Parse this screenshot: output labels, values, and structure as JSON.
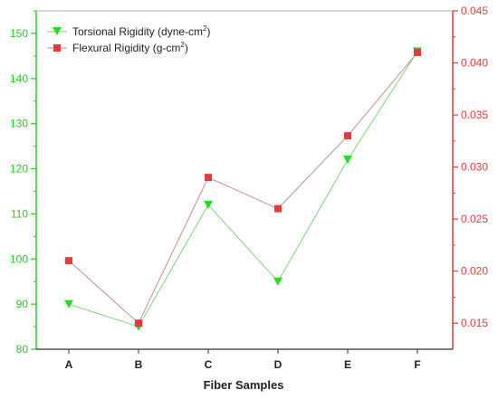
{
  "chart_data": {
    "type": "line",
    "xlabel": "Fiber Samples",
    "categories": [
      "A",
      "B",
      "C",
      "D",
      "E",
      "F"
    ],
    "y_left": {
      "range": [
        80,
        155
      ],
      "ticks": [
        80,
        90,
        100,
        110,
        120,
        130,
        140,
        150
      ],
      "tick_labels": [
        "80",
        "90",
        "100",
        "110",
        "120",
        "130",
        "140",
        "150"
      ]
    },
    "y_right": {
      "range": [
        0.0125,
        0.045
      ],
      "ticks": [
        0.015,
        0.02,
        0.025,
        0.03,
        0.035,
        0.04,
        0.045
      ],
      "tick_labels": [
        "0.015",
        "0.020",
        "0.025",
        "0.030",
        "0.035",
        "0.040",
        "0.045"
      ]
    },
    "series": [
      {
        "name": "Torsional Rigidity (dyne-cm",
        "name_sup": "2",
        "name_end": ")",
        "axis": "left",
        "marker": "triangle-down",
        "color": "#22dd22",
        "line_color": "#7ad67a",
        "values": [
          90,
          85,
          112,
          95,
          122,
          146
        ]
      },
      {
        "name": "Flexural Rigidity (g-cm",
        "name_sup": "2",
        "name_end": ")",
        "axis": "right",
        "marker": "square",
        "color": "#e03c3c",
        "line_color": "#c98a8a",
        "values": [
          0.021,
          0.015,
          0.029,
          0.026,
          0.033,
          0.041
        ]
      }
    ],
    "legend": "top-left",
    "grid": false,
    "left_axis_color": "#22cc22",
    "right_axis_color": "#e03c3c"
  }
}
